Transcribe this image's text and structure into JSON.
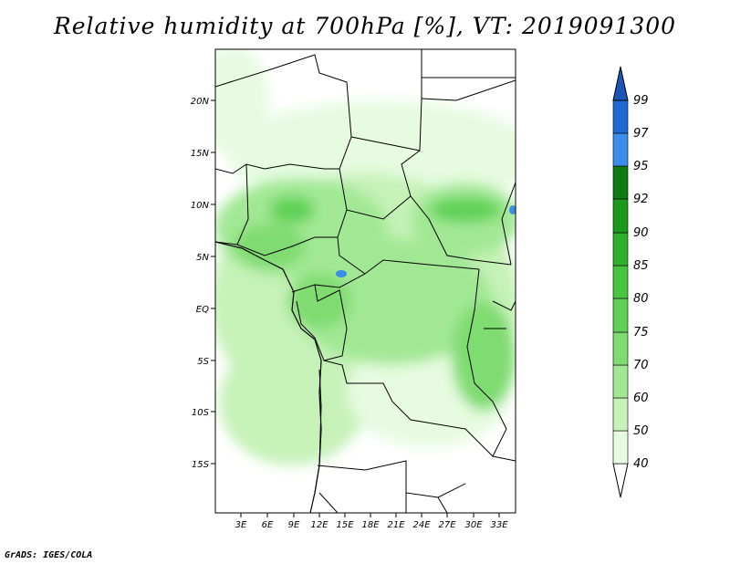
{
  "title": "Relative humidity at 700hPa [%], VT: 2019091300",
  "footer": "GrADS: IGES/COLA",
  "map": {
    "lat_labels": [
      "20N",
      "15N",
      "10N",
      "5N",
      "EQ",
      "5S",
      "10S",
      "15S"
    ],
    "lon_labels": [
      "3E",
      "6E",
      "9E",
      "12E",
      "15E",
      "18E",
      "21E",
      "24E",
      "27E",
      "30E",
      "33E"
    ]
  },
  "colorbar": {
    "levels": [
      "40",
      "50",
      "60",
      "70",
      "75",
      "80",
      "85",
      "90",
      "92",
      "95",
      "97",
      "99"
    ],
    "colors": [
      "#ffffff",
      "#e6fbe0",
      "#c6f2b8",
      "#a2e894",
      "#7fdc70",
      "#5fd155",
      "#45c540",
      "#2eb02c",
      "#1c981c",
      "#0e7a12",
      "#3a8de8",
      "#1e6bd6",
      "#1a56b8"
    ]
  }
}
